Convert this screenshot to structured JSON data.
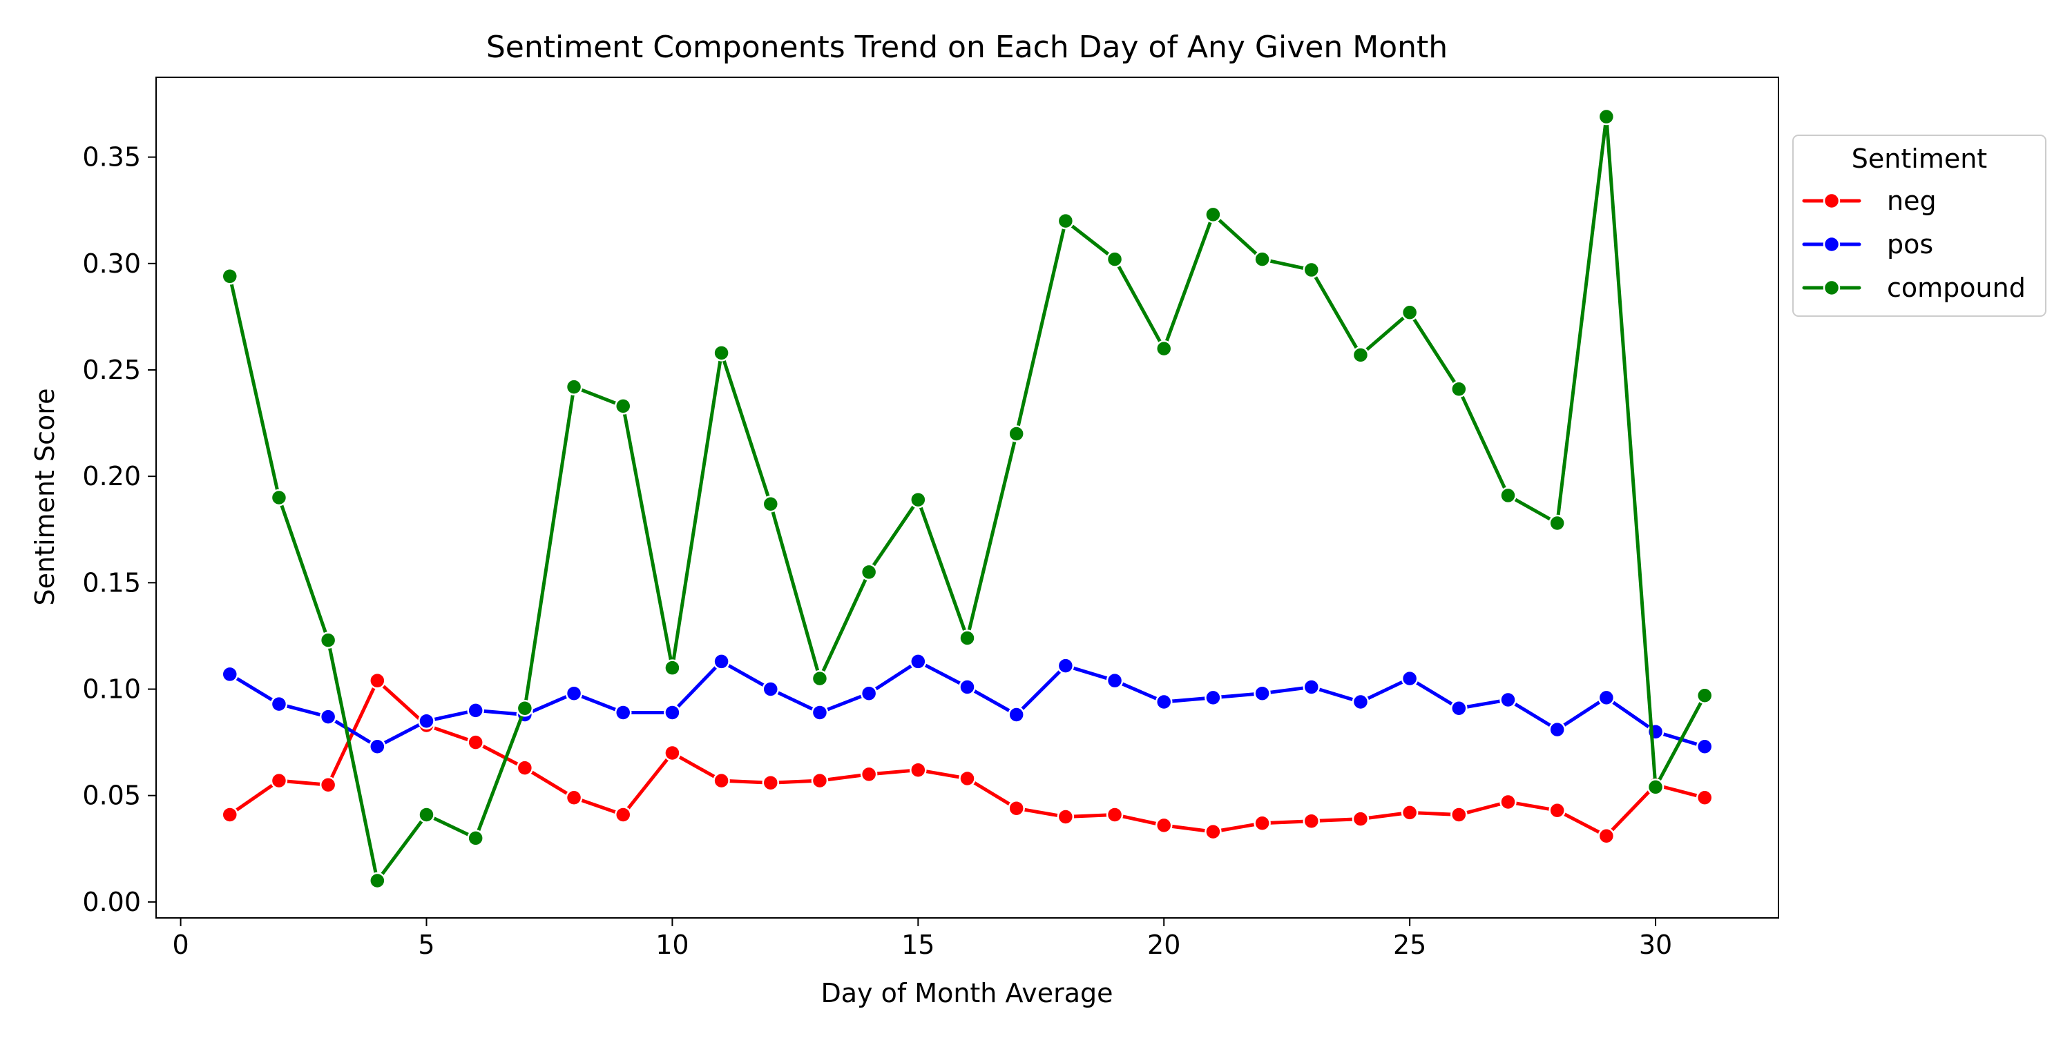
{
  "chart_data": {
    "type": "line",
    "title": "Sentiment Components Trend on Each Day of Any Given Month",
    "xlabel": "Day of Month Average",
    "ylabel": "Sentiment Score",
    "xlim": [
      -0.5,
      32.5
    ],
    "ylim": [
      -0.0075,
      0.3875
    ],
    "x_ticks": [
      0,
      5,
      10,
      15,
      20,
      25,
      30
    ],
    "x_tick_labels": [
      "0",
      "5",
      "10",
      "15",
      "20",
      "25",
      "30"
    ],
    "y_ticks": [
      0.0,
      0.05,
      0.1,
      0.15,
      0.2,
      0.25,
      0.3,
      0.35
    ],
    "y_tick_labels": [
      "0.00",
      "0.05",
      "0.10",
      "0.15",
      "0.20",
      "0.25",
      "0.30",
      "0.35"
    ],
    "grid": false,
    "legend": {
      "title": "Sentiment",
      "placement": "outside-upper-right"
    },
    "x": [
      1,
      2,
      3,
      4,
      5,
      6,
      7,
      8,
      9,
      10,
      11,
      12,
      13,
      14,
      15,
      16,
      17,
      18,
      19,
      20,
      21,
      22,
      23,
      24,
      25,
      26,
      27,
      28,
      29,
      30,
      31
    ],
    "series": [
      {
        "name": "neg",
        "color": "#ff0000",
        "values": [
          0.041,
          0.057,
          0.055,
          0.104,
          0.083,
          0.075,
          0.063,
          0.049,
          0.041,
          0.07,
          0.057,
          0.056,
          0.057,
          0.06,
          0.062,
          0.058,
          0.044,
          0.04,
          0.041,
          0.036,
          0.033,
          0.037,
          0.038,
          0.039,
          0.042,
          0.041,
          0.047,
          0.043,
          0.031,
          0.055,
          0.049
        ]
      },
      {
        "name": "pos",
        "color": "#0000ff",
        "values": [
          0.107,
          0.093,
          0.087,
          0.073,
          0.085,
          0.09,
          0.088,
          0.098,
          0.089,
          0.089,
          0.113,
          0.1,
          0.089,
          0.098,
          0.113,
          0.101,
          0.088,
          0.111,
          0.104,
          0.094,
          0.096,
          0.098,
          0.101,
          0.094,
          0.105,
          0.091,
          0.095,
          0.081,
          0.096,
          0.08,
          0.073
        ]
      },
      {
        "name": "compound",
        "color": "#008000",
        "values": [
          0.294,
          0.19,
          0.123,
          0.01,
          0.041,
          0.03,
          0.091,
          0.242,
          0.233,
          0.11,
          0.258,
          0.187,
          0.105,
          0.155,
          0.189,
          0.124,
          0.22,
          0.32,
          0.302,
          0.26,
          0.323,
          0.302,
          0.297,
          0.257,
          0.277,
          0.241,
          0.191,
          0.178,
          0.369,
          0.054,
          0.097
        ]
      }
    ]
  }
}
